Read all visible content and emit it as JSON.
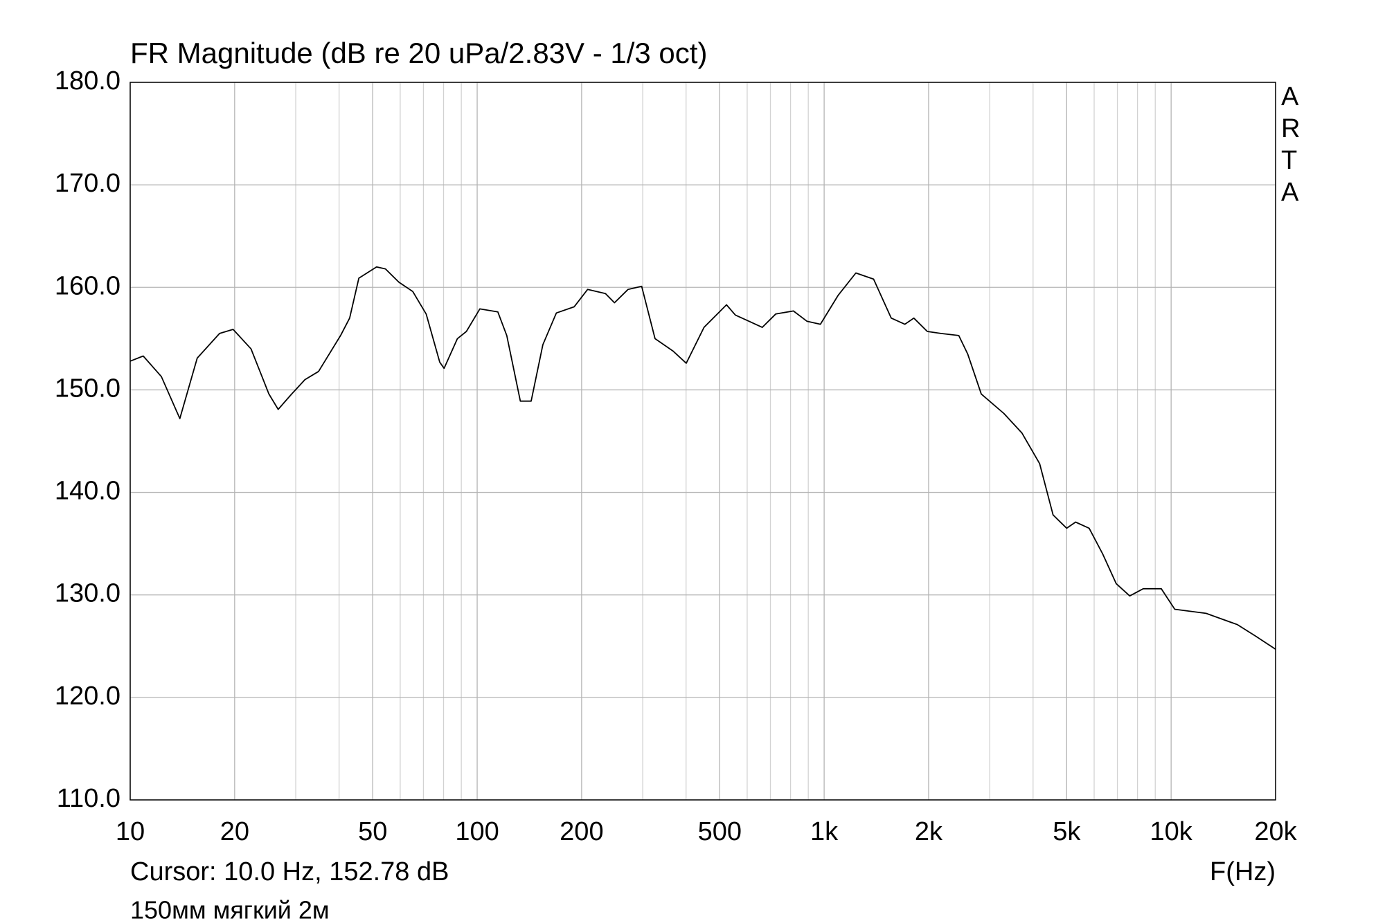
{
  "chart_data": {
    "type": "line",
    "title": "FR Magnitude (dB re 20 uPa/2.83V - 1/3 oct)",
    "watermark": "ARTA",
    "cursor": "Cursor: 10.0 Hz, 152.78 dB",
    "x_label": "F(Hz)",
    "note": "150мм мягкий 2м",
    "x_log": true,
    "grid": true,
    "xlim": [
      10,
      20000
    ],
    "ylim": [
      110,
      180
    ],
    "xticks": [
      10,
      20,
      50,
      100,
      200,
      500,
      {
        "value": 1000,
        "label": "1k"
      },
      {
        "value": 2000,
        "label": "2k"
      },
      {
        "value": 5000,
        "label": "5k"
      },
      {
        "value": 10000,
        "label": "10k"
      },
      {
        "value": 20000,
        "label": "20k"
      }
    ],
    "xminorticks": [
      30,
      40,
      60,
      70,
      80,
      90,
      300,
      400,
      600,
      700,
      800,
      900,
      3000,
      4000,
      6000,
      7000,
      8000,
      9000
    ],
    "yticks": [
      {
        "value": 110,
        "label": "110.0"
      },
      {
        "value": 120,
        "label": "120.0"
      },
      {
        "value": 130,
        "label": "130.0"
      },
      {
        "value": 140,
        "label": "140.0"
      },
      {
        "value": 150,
        "label": "150.0"
      },
      {
        "value": 160,
        "label": "160.0"
      },
      {
        "value": 170,
        "label": "170.0"
      },
      {
        "value": 180,
        "label": "180.0"
      }
    ],
    "color": "#000000",
    "x": [
      10,
      10.9,
      12.3,
      13.9,
      15.6,
      18.1,
      19.8,
      22.3,
      25.1,
      26.7,
      29.2,
      31.9,
      34.9,
      40.4,
      42.9,
      45.6,
      51.3,
      54.4,
      59.5,
      65.2,
      71.3,
      78,
      80.3,
      87.7,
      93.1,
      101.8,
      114.7,
      121.7,
      133.2,
      143.1,
      154.6,
      169.1,
      190.3,
      208.2,
      234.3,
      248.7,
      272.3,
      297.9,
      325.6,
      366.4,
      400.5,
      450.6,
      523,
      554.9,
      606.7,
      663,
      725.2,
      815.4,
      891.7,
      975.3,
      1096,
      1234,
      1388,
      1561,
      1708,
      1813,
      1983,
      2170,
      2443,
      2593,
      2837,
      3295,
      3714,
      4178,
      4568,
      5000,
      5304,
      5804,
      6349,
      6945,
      7598,
      8312,
      9366,
      10245,
      12611,
      15527,
      17480,
      20000
    ],
    "values": [
      152.8,
      153.3,
      151.3,
      147.2,
      153.1,
      155.5,
      155.9,
      154.0,
      149.6,
      148.1,
      149.6,
      151.0,
      151.8,
      155.3,
      157.0,
      160.9,
      162.0,
      161.8,
      160.5,
      159.6,
      157.4,
      152.7,
      152.1,
      155.0,
      155.7,
      157.9,
      157.6,
      155.3,
      148.9,
      148.9,
      154.4,
      157.5,
      158.1,
      159.8,
      159.4,
      158.5,
      159.8,
      160.1,
      155.0,
      153.8,
      152.6,
      156.1,
      158.3,
      157.3,
      156.7,
      156.1,
      157.4,
      157.7,
      156.7,
      156.4,
      159.2,
      161.4,
      160.8,
      157.0,
      156.4,
      157.0,
      155.7,
      155.5,
      155.3,
      153.5,
      149.6,
      147.7,
      145.8,
      142.8,
      137.8,
      136.5,
      137.1,
      136.5,
      134.0,
      131.1,
      129.9,
      130.6,
      130.6,
      128.6,
      128.2,
      127.1,
      126.0,
      124.7
    ]
  }
}
